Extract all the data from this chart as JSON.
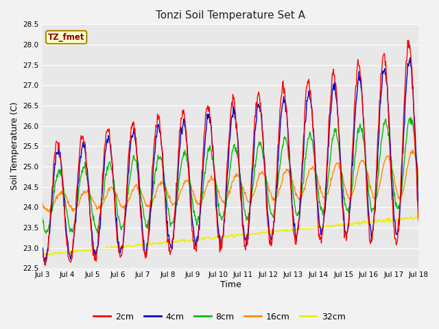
{
  "title": "Tonzi Soil Temperature Set A",
  "xlabel": "Time",
  "ylabel": "Soil Temperature (C)",
  "ylim": [
    22.5,
    28.5
  ],
  "annotation": "TZ_fmet",
  "annotation_color": "#880000",
  "annotation_bg": "#ffffcc",
  "annotation_border": "#aa8800",
  "plot_bg_color": "#e8e8e8",
  "fig_bg_color": "#f2f2f2",
  "series_colors": {
    "2cm": "#ff0000",
    "4cm": "#0000cc",
    "8cm": "#00bb00",
    "16cm": "#ff8800",
    "32cm": "#eeee00"
  },
  "x_ticks": [
    3,
    4,
    5,
    6,
    7,
    8,
    9,
    10,
    11,
    12,
    13,
    14,
    15,
    16,
    17,
    18
  ],
  "x_tick_labels": [
    "Jul 3",
    "Jul 4",
    "Jul 5",
    "Jul 6",
    "Jul 7",
    "Jul 8",
    "Jul 9",
    "Jul 10",
    "Jul 11",
    "Jul 12",
    "Jul 13",
    "Jul 14",
    "Jul 15",
    "Jul 16",
    "Jul 17",
    "Jul 18"
  ],
  "yticks": [
    22.5,
    23.0,
    23.5,
    24.0,
    24.5,
    25.0,
    25.5,
    26.0,
    26.5,
    27.0,
    27.5,
    28.0,
    28.5
  ]
}
